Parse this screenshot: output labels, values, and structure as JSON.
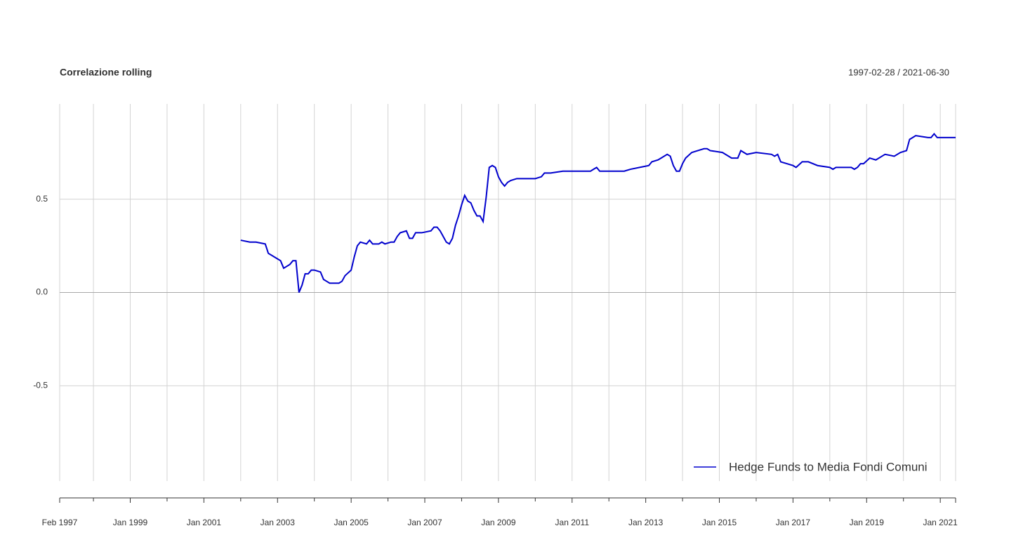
{
  "chart_data": {
    "type": "line",
    "title": "Correlazione rolling",
    "subtitle": "1997-02-28 / 2021-06-30",
    "xlim": [
      "1997-02",
      "2021-06"
    ],
    "xticks": [
      {
        "value": "1997-02",
        "label": "Feb 1997"
      },
      {
        "value": "1999-01",
        "label": "Jan 1999"
      },
      {
        "value": "2001-01",
        "label": "Jan 2001"
      },
      {
        "value": "2003-01",
        "label": "Jan 2003"
      },
      {
        "value": "2005-01",
        "label": "Jan 2005"
      },
      {
        "value": "2007-01",
        "label": "Jan 2007"
      },
      {
        "value": "2009-01",
        "label": "Jan 2009"
      },
      {
        "value": "2011-01",
        "label": "Jan 2011"
      },
      {
        "value": "2013-01",
        "label": "Jan 2013"
      },
      {
        "value": "2015-01",
        "label": "Jan 2015"
      },
      {
        "value": "2017-01",
        "label": "Jan 2017"
      },
      {
        "value": "2019-01",
        "label": "Jan 2019"
      },
      {
        "value": "2021-01",
        "label": "Jan 2021"
      }
    ],
    "xminor": [
      "1998-01",
      "2000-01",
      "2002-01",
      "2004-01",
      "2006-01",
      "2008-01",
      "2010-01",
      "2012-01",
      "2014-01",
      "2016-01",
      "2018-01",
      "2020-01"
    ],
    "ylim": [
      -1.01,
      1.01
    ],
    "yticks": [
      -0.5,
      {
        "value": 0,
        "label": "0.0"
      },
      0.5
    ],
    "grid": true,
    "legend": "bottomright",
    "x": [
      "2002-01",
      "2002-04",
      "2002-06",
      "2002-09",
      "2002-10",
      "2003-01",
      "2003-02",
      "2003-03",
      "2003-05",
      "2003-06",
      "2003-07",
      "2003-08",
      "2003-09",
      "2003-10",
      "2003-11",
      "2003-12",
      "2004-01",
      "2004-03",
      "2004-04",
      "2004-05",
      "2004-06",
      "2004-08",
      "2004-09",
      "2004-10",
      "2004-11",
      "2005-01",
      "2005-02",
      "2005-03",
      "2005-04",
      "2005-06",
      "2005-07",
      "2005-08",
      "2005-10",
      "2005-11",
      "2005-12",
      "2006-02",
      "2006-03",
      "2006-04",
      "2006-05",
      "2006-07",
      "2006-08",
      "2006-09",
      "2006-10",
      "2006-12",
      "2007-03",
      "2007-04",
      "2007-05",
      "2007-06",
      "2007-07",
      "2007-08",
      "2007-09",
      "2007-10",
      "2007-11",
      "2007-12",
      "2008-01",
      "2008-02",
      "2008-03",
      "2008-04",
      "2008-05",
      "2008-06",
      "2008-07",
      "2008-08",
      "2008-09",
      "2008-10",
      "2008-11",
      "2008-12",
      "2009-01",
      "2009-02",
      "2009-03",
      "2009-04",
      "2009-05",
      "2009-07",
      "2009-10",
      "2010-01",
      "2010-03",
      "2010-04",
      "2010-06",
      "2010-10",
      "2011-01",
      "2011-07",
      "2011-08",
      "2011-09",
      "2011-10",
      "2012-01",
      "2012-06",
      "2012-08",
      "2012-11",
      "2013-02",
      "2013-03",
      "2013-05",
      "2013-06",
      "2013-08",
      "2013-09",
      "2013-10",
      "2013-11",
      "2013-12",
      "2014-01",
      "2014-02",
      "2014-04",
      "2014-06",
      "2014-08",
      "2014-09",
      "2014-10",
      "2015-02",
      "2015-05",
      "2015-07",
      "2015-08",
      "2015-10",
      "2016-01",
      "2016-06",
      "2016-07",
      "2016-08",
      "2016-09",
      "2017-01",
      "2017-02",
      "2017-04",
      "2017-06",
      "2017-09",
      "2018-01",
      "2018-02",
      "2018-03",
      "2018-08",
      "2018-09",
      "2018-10",
      "2018-11",
      "2018-12",
      "2019-02",
      "2019-04",
      "2019-06",
      "2019-07",
      "2019-10",
      "2019-12",
      "2020-02",
      "2020-03",
      "2020-04",
      "2020-05",
      "2020-09",
      "2020-10",
      "2020-11",
      "2020-12",
      "2021-01",
      "2021-04",
      "2021-06"
    ],
    "series": [
      {
        "name": "Hedge Funds to Media Fondi Comuni",
        "color": "#0000cd",
        "values": [
          0.28,
          0.27,
          0.27,
          0.26,
          0.21,
          0.18,
          0.17,
          0.13,
          0.15,
          0.17,
          0.17,
          0.0,
          0.04,
          0.1,
          0.1,
          0.12,
          0.12,
          0.11,
          0.07,
          0.06,
          0.05,
          0.05,
          0.05,
          0.06,
          0.09,
          0.12,
          0.19,
          0.25,
          0.27,
          0.26,
          0.28,
          0.26,
          0.26,
          0.27,
          0.26,
          0.27,
          0.27,
          0.3,
          0.32,
          0.33,
          0.29,
          0.29,
          0.32,
          0.32,
          0.33,
          0.35,
          0.35,
          0.33,
          0.3,
          0.27,
          0.26,
          0.29,
          0.36,
          0.41,
          0.47,
          0.52,
          0.49,
          0.48,
          0.44,
          0.41,
          0.41,
          0.38,
          0.51,
          0.67,
          0.68,
          0.67,
          0.62,
          0.59,
          0.57,
          0.59,
          0.6,
          0.61,
          0.61,
          0.61,
          0.62,
          0.64,
          0.64,
          0.65,
          0.65,
          0.65,
          0.66,
          0.67,
          0.65,
          0.65,
          0.65,
          0.66,
          0.67,
          0.68,
          0.7,
          0.71,
          0.72,
          0.74,
          0.73,
          0.68,
          0.65,
          0.65,
          0.69,
          0.72,
          0.75,
          0.76,
          0.77,
          0.77,
          0.76,
          0.75,
          0.72,
          0.72,
          0.76,
          0.74,
          0.75,
          0.74,
          0.73,
          0.74,
          0.7,
          0.68,
          0.67,
          0.7,
          0.7,
          0.68,
          0.67,
          0.66,
          0.67,
          0.67,
          0.66,
          0.67,
          0.69,
          0.69,
          0.72,
          0.71,
          0.73,
          0.74,
          0.73,
          0.75,
          0.76,
          0.82,
          0.83,
          0.84,
          0.83,
          0.83,
          0.85,
          0.83,
          0.83,
          0.83,
          0.83
        ]
      }
    ]
  }
}
